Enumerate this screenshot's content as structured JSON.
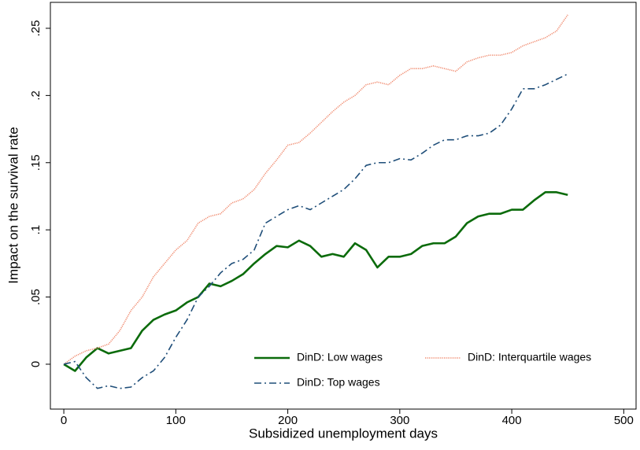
{
  "chart_data": {
    "type": "line",
    "xlabel": "Subsidized unemployment days",
    "ylabel": "Impact on the survival rate",
    "x": [
      0,
      10,
      20,
      30,
      40,
      50,
      60,
      70,
      80,
      90,
      100,
      110,
      120,
      130,
      140,
      150,
      160,
      170,
      180,
      190,
      200,
      210,
      220,
      230,
      240,
      250,
      260,
      270,
      280,
      290,
      300,
      310,
      320,
      330,
      340,
      350,
      360,
      370,
      380,
      390,
      400,
      410,
      420,
      430,
      440,
      450
    ],
    "series": [
      {
        "name": "DinD: Low wages",
        "color": "#0b6b0b",
        "style": "solid",
        "values": [
          0,
          -0.005,
          0.005,
          0.012,
          0.008,
          0.01,
          0.012,
          0.025,
          0.033,
          0.037,
          0.04,
          0.046,
          0.05,
          0.06,
          0.058,
          0.062,
          0.067,
          0.075,
          0.082,
          0.088,
          0.087,
          0.092,
          0.088,
          0.08,
          0.082,
          0.08,
          0.09,
          0.085,
          0.072,
          0.08,
          0.08,
          0.082,
          0.088,
          0.09,
          0.09,
          0.095,
          0.105,
          0.11,
          0.112,
          0.112,
          0.115,
          0.115,
          0.122,
          0.128,
          0.128,
          0.126
        ]
      },
      {
        "name": "DinD: Interquartile wages",
        "color": "#f08a6e",
        "style": "dotted",
        "values": [
          0,
          0.006,
          0.01,
          0.012,
          0.015,
          0.025,
          0.04,
          0.05,
          0.065,
          0.075,
          0.085,
          0.092,
          0.105,
          0.11,
          0.112,
          0.12,
          0.123,
          0.13,
          0.142,
          0.152,
          0.163,
          0.165,
          0.172,
          0.18,
          0.188,
          0.195,
          0.2,
          0.208,
          0.21,
          0.208,
          0.215,
          0.22,
          0.22,
          0.222,
          0.22,
          0.218,
          0.225,
          0.228,
          0.23,
          0.23,
          0.232,
          0.237,
          0.24,
          0.243,
          0.248,
          0.26
        ]
      },
      {
        "name": "DinD: Top wages",
        "color": "#1f4e79",
        "style": "dashdot",
        "values": [
          0,
          0.002,
          -0.01,
          -0.018,
          -0.016,
          -0.018,
          -0.017,
          -0.01,
          -0.005,
          0.005,
          0.02,
          0.033,
          0.05,
          0.058,
          0.068,
          0.075,
          0.078,
          0.085,
          0.105,
          0.11,
          0.115,
          0.118,
          0.115,
          0.12,
          0.125,
          0.13,
          0.138,
          0.148,
          0.15,
          0.15,
          0.153,
          0.152,
          0.157,
          0.163,
          0.167,
          0.167,
          0.17,
          0.17,
          0.172,
          0.178,
          0.19,
          0.205,
          0.205,
          0.208,
          0.212,
          0.216
        ]
      }
    ],
    "xlim": [
      -12,
      511
    ],
    "ylim": [
      -0.0334,
      0.2693
    ],
    "xticks": [
      0,
      100,
      200,
      300,
      400,
      500
    ],
    "yticks": [
      0,
      {
        "value": 0.05,
        "label": ".05"
      },
      {
        "value": 0.1,
        "label": ".1"
      },
      {
        "value": 0.15,
        "label": ".15"
      },
      {
        "value": 0.2,
        "label": ".2"
      },
      {
        "value": 0.25,
        "label": ".25"
      }
    ],
    "legend": "lower right",
    "legend_columns": 2
  }
}
